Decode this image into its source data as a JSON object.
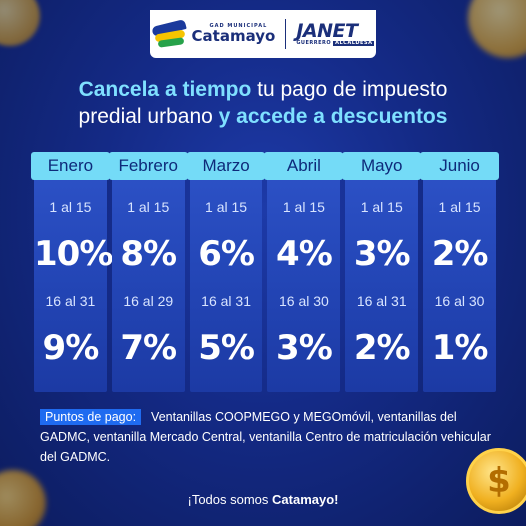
{
  "logo": {
    "gad": "GAD MUNICIPAL",
    "city": "Catamayo",
    "name": "JANET",
    "role": "GUERRERO",
    "role_tag": "ALCALDESA"
  },
  "headline": {
    "part1": "Cancela a tiempo",
    "part2": " tu pago de impuesto",
    "part3": "predial urbano ",
    "part4": "y accede a descuentos"
  },
  "months": [
    {
      "name": "Enero",
      "range1": "1 al 15",
      "pct1": "10%",
      "range2": "16 al 31",
      "pct2": "9%"
    },
    {
      "name": "Febrero",
      "range1": "1 al 15",
      "pct1": "8%",
      "range2": "16 al 29",
      "pct2": "7%"
    },
    {
      "name": "Marzo",
      "range1": "1 al 15",
      "pct1": "6%",
      "range2": "16 al 31",
      "pct2": "5%"
    },
    {
      "name": "Abril",
      "range1": "1 al 15",
      "pct1": "4%",
      "range2": "16 al 30",
      "pct2": "3%"
    },
    {
      "name": "Mayo",
      "range1": "1 al 15",
      "pct1": "3%",
      "range2": "16 al 31",
      "pct2": "2%"
    },
    {
      "name": "Junio",
      "range1": "1 al 15",
      "pct1": "2%",
      "range2": "16 al 30",
      "pct2": "1%"
    }
  ],
  "payment": {
    "label": "Puntos de pago:",
    "text": "Ventanillas COOPMEGO y MEGOmóvil, ventanillas del GADMC, ventanilla Mercado Central, ventanilla Centro de matriculación vehicular del GADMC."
  },
  "footer": {
    "prefix": "¡Todos somos ",
    "bold": "Catamayo!"
  },
  "colors": {
    "background": "#142a86",
    "accent": "#74dbf7",
    "highlight": "#7fe0ff",
    "label": "#1f6bf0"
  },
  "icons": [
    "coin-icon",
    "dollar-coin-icon"
  ]
}
